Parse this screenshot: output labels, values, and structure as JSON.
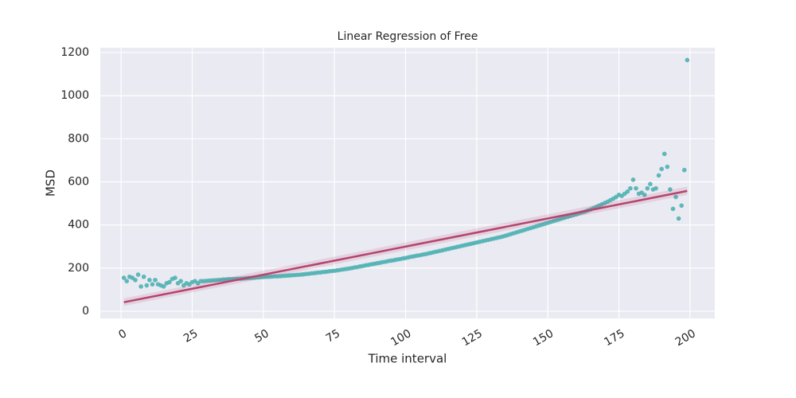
{
  "chart_data": {
    "type": "scatter",
    "title": "Linear Regression of Free",
    "x_label": "Time interval",
    "y_label": "MSD",
    "xlim": [
      -7.3,
      208.7
    ],
    "ylim": [
      -33,
      1222
    ],
    "xticks": [
      0,
      25,
      50,
      75,
      100,
      125,
      150,
      175,
      200
    ],
    "yticks": [
      0,
      200,
      400,
      600,
      800,
      1000,
      1200
    ],
    "grid": true,
    "points": {
      "color": "#4fb1b3",
      "x": [
        1,
        2,
        3,
        4,
        5,
        6,
        7,
        8,
        9,
        10,
        11,
        12,
        13,
        14,
        15,
        16,
        17,
        18,
        19,
        20,
        21,
        22,
        23,
        24,
        25,
        26,
        27,
        28,
        29,
        30,
        31,
        32,
        33,
        34,
        35,
        36,
        37,
        38,
        39,
        40,
        41,
        42,
        43,
        44,
        45,
        46,
        47,
        48,
        49,
        50,
        51,
        52,
        53,
        54,
        55,
        56,
        57,
        58,
        59,
        60,
        61,
        62,
        63,
        64,
        65,
        66,
        67,
        68,
        69,
        70,
        71,
        72,
        73,
        74,
        75,
        76,
        77,
        78,
        79,
        80,
        81,
        82,
        83,
        84,
        85,
        86,
        87,
        88,
        89,
        90,
        91,
        92,
        93,
        94,
        95,
        96,
        97,
        98,
        99,
        100,
        101,
        102,
        103,
        104,
        105,
        106,
        107,
        108,
        109,
        110,
        111,
        112,
        113,
        114,
        115,
        116,
        117,
        118,
        119,
        120,
        121,
        122,
        123,
        124,
        125,
        126,
        127,
        128,
        129,
        130,
        131,
        132,
        133,
        134,
        135,
        136,
        137,
        138,
        139,
        140,
        141,
        142,
        143,
        144,
        145,
        146,
        147,
        148,
        149,
        150,
        151,
        152,
        153,
        154,
        155,
        156,
        157,
        158,
        159,
        160,
        161,
        162,
        163,
        164,
        165,
        166,
        167,
        168,
        169,
        170,
        171,
        172,
        173,
        174,
        175,
        176,
        177,
        178,
        179,
        180,
        181,
        182,
        183,
        184,
        185,
        186,
        187,
        188,
        189,
        190,
        191,
        192,
        193,
        194,
        195,
        196,
        197,
        198,
        199
      ],
      "values": [
        155,
        140,
        160,
        155,
        145,
        170,
        115,
        160,
        120,
        145,
        125,
        145,
        125,
        120,
        115,
        130,
        135,
        150,
        155,
        130,
        140,
        120,
        130,
        125,
        135,
        140,
        130,
        140,
        140,
        141,
        142,
        143,
        144,
        145,
        146,
        147,
        148,
        149,
        149,
        150,
        151,
        151,
        152,
        153,
        154,
        155,
        156,
        157,
        158,
        159,
        160,
        160,
        161,
        162,
        162,
        163,
        164,
        165,
        166,
        167,
        168,
        169,
        170,
        171,
        173,
        174,
        176,
        177,
        179,
        180,
        182,
        183,
        185,
        187,
        188,
        190,
        192,
        194,
        196,
        198,
        200,
        203,
        205,
        208,
        210,
        213,
        215,
        218,
        220,
        223,
        225,
        228,
        230,
        233,
        235,
        237,
        240,
        242,
        245,
        247,
        250,
        253,
        255,
        258,
        260,
        263,
        265,
        268,
        271,
        274,
        277,
        280,
        283,
        286,
        289,
        292,
        295,
        298,
        301,
        304,
        307,
        310,
        313,
        316,
        319,
        322,
        325,
        328,
        331,
        334,
        337,
        340,
        343,
        346,
        350,
        354,
        358,
        362,
        366,
        370,
        374,
        378,
        382,
        386,
        390,
        394,
        398,
        402,
        406,
        410,
        414,
        418,
        422,
        426,
        430,
        434,
        438,
        442,
        446,
        450,
        454,
        458,
        462,
        467,
        472,
        478,
        484,
        490,
        496,
        502,
        508,
        515,
        522,
        530,
        540,
        535,
        545,
        555,
        570,
        610,
        570,
        545,
        550,
        540,
        570,
        590,
        565,
        570,
        630,
        660,
        730,
        670,
        565,
        475,
        530,
        430,
        490,
        655,
        1165
      ]
    },
    "fit": {
      "color": "#b5446e",
      "x": [
        1,
        199
      ],
      "values": [
        42,
        558
      ],
      "lower": [
        25,
        540
      ],
      "upper": [
        60,
        578
      ]
    }
  }
}
